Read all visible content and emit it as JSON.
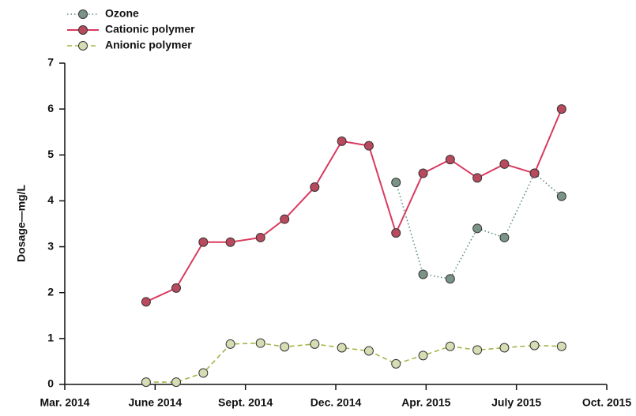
{
  "chart_data": {
    "type": "line",
    "y_label": "Dosage—mg/L",
    "xlim": [
      0,
      18
    ],
    "xticks": [
      {
        "value": 0,
        "label": "Mar. 2014"
      },
      {
        "value": 3,
        "label": "June 2014"
      },
      {
        "value": 6,
        "label": "Sept. 2014"
      },
      {
        "value": 9,
        "label": "Dec. 2014"
      },
      {
        "value": 12,
        "label": "Apr. 2015"
      },
      {
        "value": 15,
        "label": "July 2015"
      },
      {
        "value": 18,
        "label": "Oct. 2015"
      }
    ],
    "ylim": [
      0,
      7
    ],
    "yticks": [
      0,
      1,
      2,
      3,
      4,
      5,
      6,
      7
    ],
    "grid": false,
    "legend": "top-left",
    "x": [
      2.7,
      3.7,
      4.6,
      5.5,
      6.5,
      7.3,
      8.3,
      9.2,
      10.1,
      11.0,
      11.9,
      12.8,
      13.7,
      14.6,
      15.6,
      16.5
    ],
    "series": [
      {
        "name": "Ozone",
        "color": "#5f8a86",
        "marker": "#7c9488",
        "dash": "dotted",
        "values": [
          null,
          null,
          null,
          null,
          null,
          null,
          null,
          null,
          null,
          4.4,
          2.4,
          2.3,
          3.4,
          3.2,
          4.6,
          4.1
        ]
      },
      {
        "name": "Cationic polymer",
        "color": "#d93a5e",
        "marker": "#b94a5e",
        "dash": "solid",
        "values": [
          1.8,
          2.1,
          3.1,
          3.1,
          3.2,
          3.6,
          4.3,
          5.3,
          5.2,
          3.3,
          4.6,
          4.9,
          4.5,
          4.8,
          4.6,
          6.0
        ]
      },
      {
        "name": "Anionic polymer",
        "color": "#a9b34a",
        "marker": "#d6dcb4",
        "dash": "dashed",
        "values": [
          0.05,
          0.05,
          0.25,
          0.88,
          0.9,
          0.82,
          0.88,
          0.8,
          0.73,
          0.45,
          0.63,
          0.83,
          0.75,
          0.8,
          0.85,
          0.83
        ]
      }
    ]
  }
}
